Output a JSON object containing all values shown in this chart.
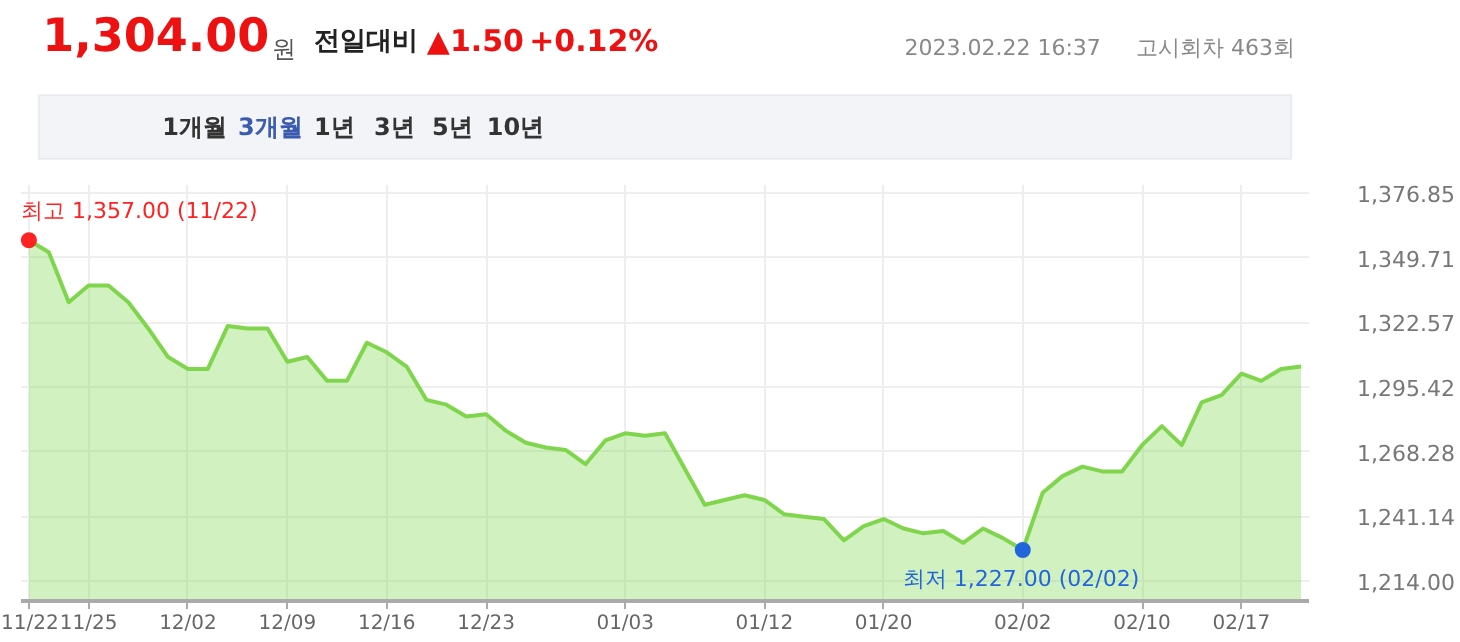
{
  "chart_data": {
    "type": "area",
    "title": "1,304.00",
    "annotations": [
      "원",
      "전일대비",
      "▲1.50",
      "+0.12%",
      "2023.02.22 16:37",
      "고시회차 463회",
      "1개월",
      "3개월",
      "1년",
      "3년",
      "5년",
      "10년",
      {
        "text": "최고 1,357.00 (11/22)",
        "x": "11/22",
        "y": 1357
      },
      {
        "text": "최저 1,227.00 (02/02)",
        "x": "02/02",
        "y": 1227
      }
    ],
    "categories": [
      "11/22",
      null,
      null,
      "11/25",
      null,
      null,
      null,
      null,
      "12/02",
      null,
      null,
      null,
      null,
      "12/09",
      null,
      null,
      null,
      null,
      "12/16",
      null,
      null,
      null,
      null,
      "12/23",
      null,
      null,
      null,
      null,
      null,
      null,
      "01/03",
      null,
      null,
      null,
      null,
      null,
      null,
      "01/12",
      null,
      null,
      null,
      null,
      null,
      "01/20",
      null,
      null,
      null,
      null,
      null,
      null,
      "02/02",
      null,
      null,
      null,
      null,
      null,
      "02/10",
      null,
      null,
      null,
      null,
      "02/17",
      null,
      null,
      null
    ],
    "series": [
      {
        "color": "#7fd64c",
        "values": [
          1357,
          1352,
          1331,
          1338,
          1338,
          1331,
          1320,
          1308,
          1303,
          1303,
          1321,
          1320,
          1320,
          1306,
          1308,
          1298,
          1298,
          1314,
          1310,
          1304,
          1290,
          1288,
          1283,
          1284,
          1277,
          1272,
          1270,
          1269,
          1263,
          1273,
          1276,
          1275,
          1276,
          1261,
          1246,
          1248,
          1250,
          1248,
          1242,
          1241,
          1240,
          1231,
          1237,
          1240,
          1236,
          1234,
          1235,
          1230,
          1236,
          1232,
          1227,
          1251,
          1258,
          1262,
          1260,
          1260,
          1271,
          1279,
          1271,
          1289,
          1292,
          1301,
          1298,
          1303,
          1304
        ]
      }
    ],
    "ylim": [
      1205.6,
      1380.2
    ],
    "yticks": [
      {
        "value": 1214.0,
        "label": "1,214.00"
      },
      {
        "value": 1241.14,
        "label": "1,241.14"
      },
      {
        "value": 1268.28,
        "label": "1,268.28"
      },
      {
        "value": 1295.42,
        "label": "1,295.42"
      },
      {
        "value": 1322.57,
        "label": "1,322.57"
      },
      {
        "value": 1349.71,
        "label": "1,349.71"
      },
      {
        "value": 1376.85,
        "label": "1,376.85"
      }
    ],
    "grid": true
  }
}
